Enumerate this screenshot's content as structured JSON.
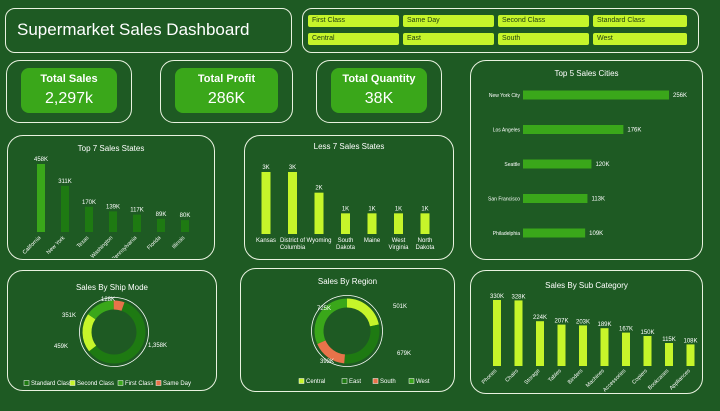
{
  "title": "Supermarket Sales Dashboard",
  "filters": [
    {
      "label": "First Class"
    },
    {
      "label": "Same Day"
    },
    {
      "label": "Second Class"
    },
    {
      "label": "Standard Class"
    },
    {
      "label": "Central"
    },
    {
      "label": "East"
    },
    {
      "label": "South"
    },
    {
      "label": "West"
    }
  ],
  "kpis": [
    {
      "label": "Total Sales",
      "value": "2,297k"
    },
    {
      "label": "Total Profit",
      "value": "286K"
    },
    {
      "label": "Total Quantity",
      "value": "38K"
    }
  ],
  "colors": {
    "bg": "#1e5a23",
    "bright": "#c6f52a",
    "mid": "#3aa71a",
    "dark": "#1e7a12",
    "salmon": "#e8734a",
    "border": "#e9f2e0"
  },
  "chart_data": [
    {
      "id": "top7",
      "type": "bar",
      "title": "Top 7 Sales States",
      "categories": [
        "California",
        "New York",
        "Texas",
        "Washington",
        "Pennsylvania",
        "Florida",
        "Illinois"
      ],
      "values": [
        458,
        311,
        170,
        139,
        117,
        89,
        80
      ],
      "labels": [
        "458K",
        "311K",
        "170K",
        "139K",
        "117K",
        "89K",
        "80K"
      ]
    },
    {
      "id": "less7",
      "type": "bar",
      "title": "Less 7 Sales States",
      "categories": [
        "Kansas",
        "District of Columbia",
        "Wyoming",
        "South Dakota",
        "Maine",
        "West Virginia",
        "North Dakota"
      ],
      "values": [
        3,
        3,
        2,
        1,
        1,
        1,
        1
      ],
      "labels": [
        "3K",
        "3K",
        "2K",
        "1K",
        "1K",
        "1K",
        "1K"
      ]
    },
    {
      "id": "cities",
      "type": "bar",
      "title": "Top 5 Sales Cities",
      "categories": [
        "New York City",
        "Los Angeles",
        "Seattle",
        "San Francisco",
        "Philadelphia"
      ],
      "values": [
        256,
        176,
        120,
        113,
        109
      ],
      "labels": [
        "256K",
        "176K",
        "120K",
        "113K",
        "109K"
      ]
    },
    {
      "id": "shipmode",
      "type": "pie",
      "title": "Sales By Ship Mode",
      "categories": [
        "Standard Class",
        "Second Class",
        "First Class",
        "Same Day"
      ],
      "values": [
        1358,
        459,
        351,
        128
      ],
      "labels": [
        "1,358K",
        "459K",
        "351K",
        "128K"
      ]
    },
    {
      "id": "region",
      "type": "pie",
      "title": "Sales By Region",
      "categories": [
        "Central",
        "East",
        "South",
        "West"
      ],
      "values": [
        501,
        679,
        392,
        725
      ],
      "labels": [
        "501K",
        "679K",
        "392K",
        "725K"
      ]
    },
    {
      "id": "subcat",
      "type": "bar",
      "title": "Sales By Sub Category",
      "categories": [
        "Phones",
        "Chairs",
        "Storage",
        "Tables",
        "Binders",
        "Machines",
        "Accessories",
        "Copiers",
        "Bookcases",
        "Appliances"
      ],
      "values": [
        330,
        328,
        224,
        207,
        203,
        189,
        167,
        150,
        115,
        108
      ],
      "labels": [
        "330K",
        "328K",
        "224K",
        "207K",
        "203K",
        "189K",
        "167K",
        "150K",
        "115K",
        "108K"
      ]
    }
  ]
}
